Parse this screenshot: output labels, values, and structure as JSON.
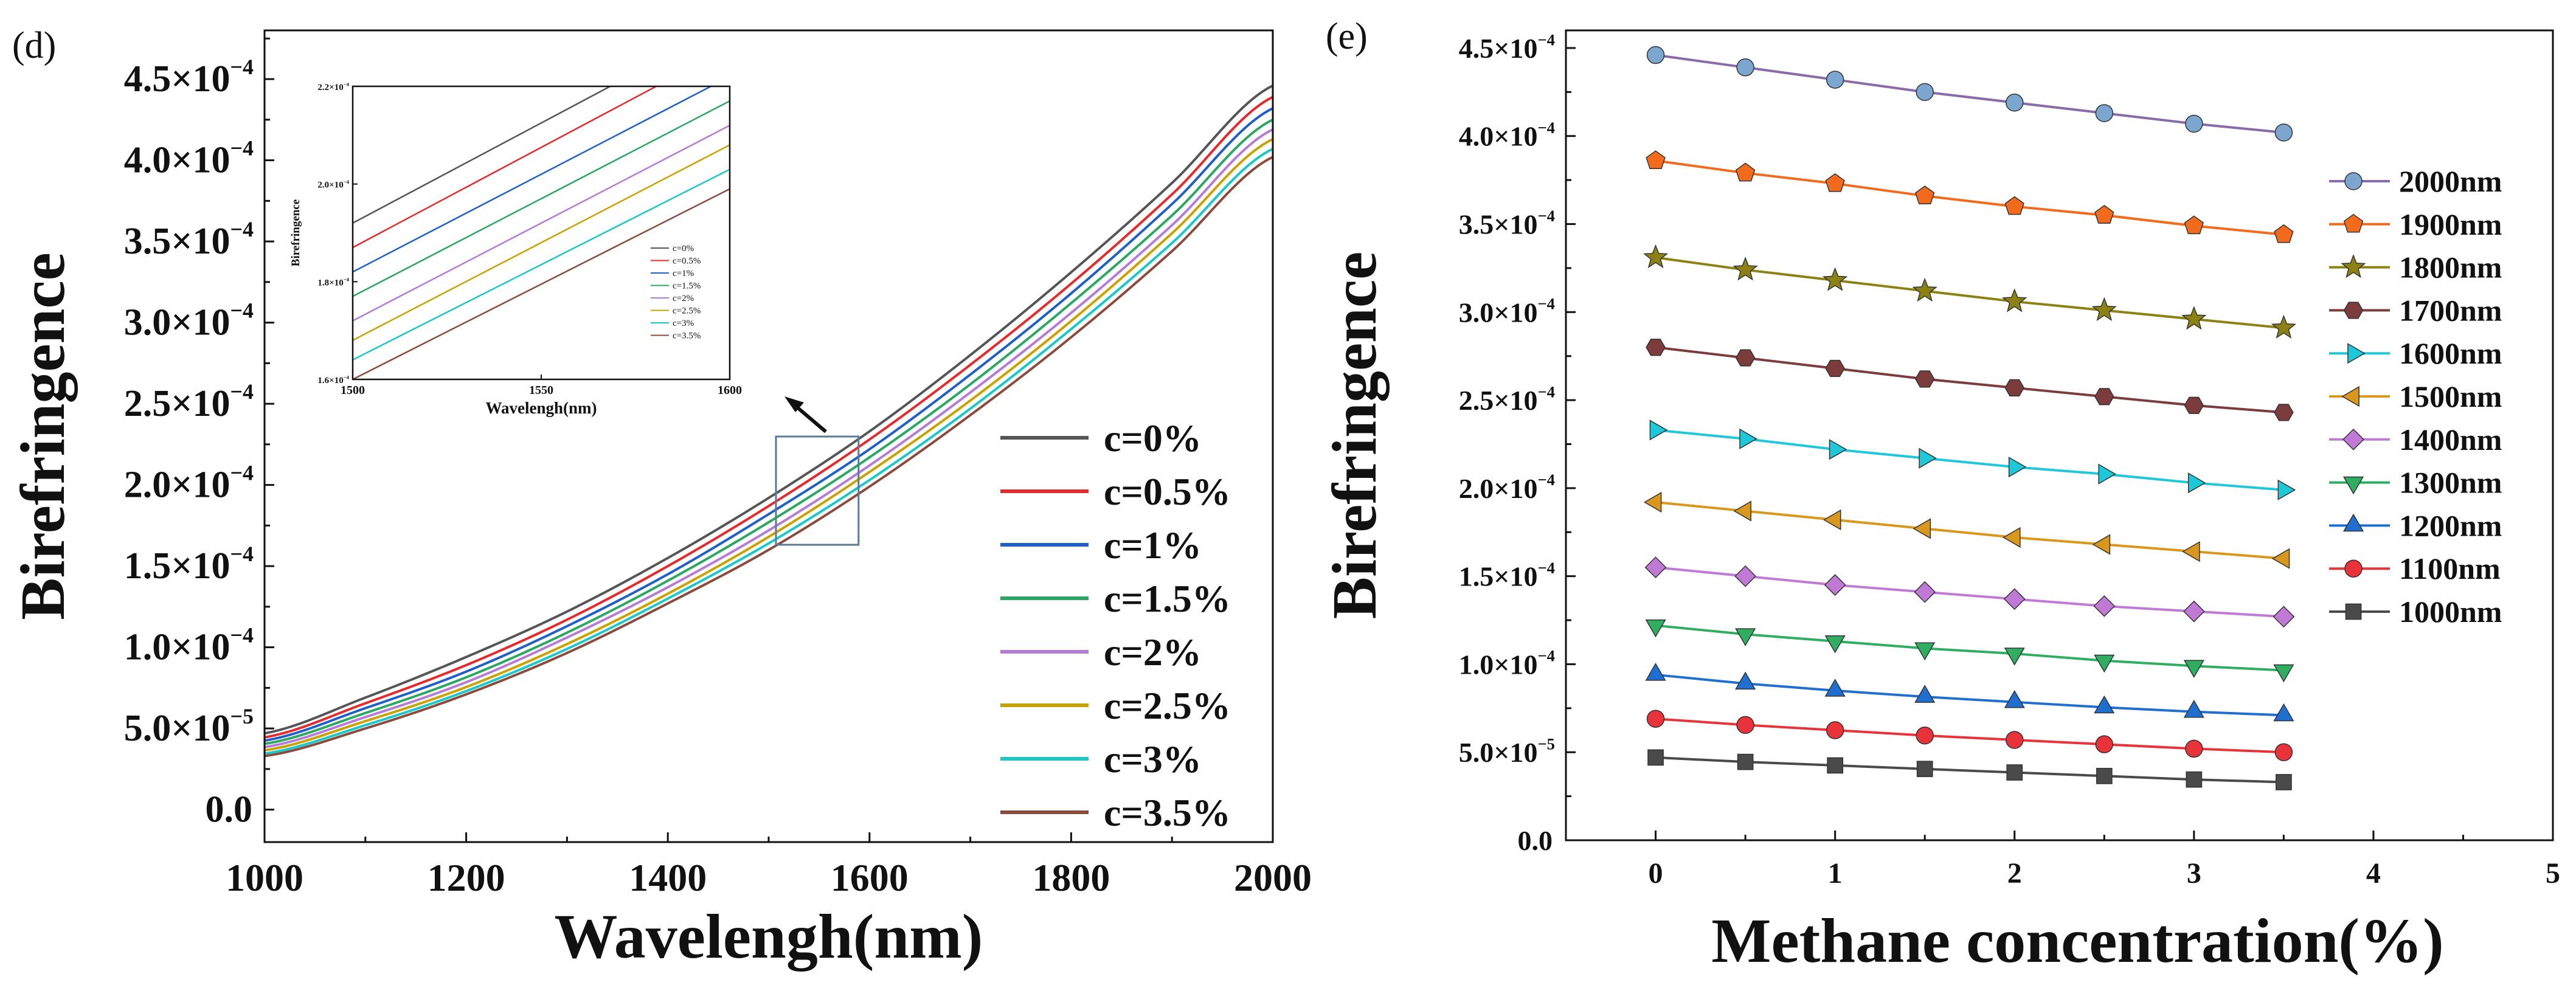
{
  "chart_data": [
    {
      "panel_label": "(d)",
      "type": "line",
      "title": "",
      "xlabel": "Wavelengh(nm)",
      "ylabel": "Birefringence",
      "xlim": [
        1000,
        2000
      ],
      "ylim": [
        -2e-05,
        0.00048
      ],
      "xticks": [
        1000,
        1200,
        1400,
        1600,
        1800,
        2000
      ],
      "xtick_labels": [
        "1000",
        "1200",
        "1400",
        "1600",
        "1800",
        "2000"
      ],
      "yticks": [
        0,
        5e-05,
        0.0001,
        0.00015,
        0.0002,
        0.00025,
        0.0003,
        0.00035,
        0.0004,
        0.00045
      ],
      "ytick_labels": [
        {
          "text": "0.0",
          "mant": "",
          "exp": ""
        },
        {
          "text": "",
          "mant": "5.0×10",
          "exp": "−5"
        },
        {
          "text": "",
          "mant": "1.0×10",
          "exp": "−4"
        },
        {
          "text": "",
          "mant": "1.5×10",
          "exp": "−4"
        },
        {
          "text": "",
          "mant": "2.0×10",
          "exp": "−4"
        },
        {
          "text": "",
          "mant": "2.5×10",
          "exp": "−4"
        },
        {
          "text": "",
          "mant": "3.0×10",
          "exp": "−4"
        },
        {
          "text": "",
          "mant": "3.5×10",
          "exp": "−4"
        },
        {
          "text": "",
          "mant": "4.0×10",
          "exp": "−4"
        },
        {
          "text": "",
          "mant": "4.5×10",
          "exp": "−4"
        }
      ],
      "legend_position": "lower-right",
      "grid": false,
      "x": [
        1000,
        1100,
        1200,
        1300,
        1400,
        1500,
        1600,
        1700,
        1800,
        1900,
        2000
      ],
      "series": [
        {
          "name": "c=0%",
          "color": "#555555",
          "values": [
            4.7e-05,
            6.9e-05,
            9.4e-05,
            0.000122,
            0.000155,
            0.000192,
            0.000233,
            0.00028,
            0.000331,
            0.000386,
            0.000446
          ]
        },
        {
          "name": "c=0.5%",
          "color": "#e8292c",
          "values": [
            4.45e-05,
            6.55e-05,
            8.9e-05,
            0.000117,
            0.00015,
            0.000187,
            0.000228,
            0.000274,
            0.000324,
            0.000379,
            0.000439
          ]
        },
        {
          "name": "c=1%",
          "color": "#1f5fc9",
          "values": [
            4.25e-05,
            6.25e-05,
            8.5e-05,
            0.000113,
            0.000145,
            0.000182,
            0.000222,
            0.000268,
            0.000318,
            0.000373,
            0.000432
          ]
        },
        {
          "name": "c=1.5%",
          "color": "#2aa760",
          "values": [
            4.05e-05,
            5.95e-05,
            8.15e-05,
            0.000109,
            0.000141,
            0.000177,
            0.000217,
            0.000262,
            0.000312,
            0.000366,
            0.000425
          ]
        },
        {
          "name": "c=2%",
          "color": "#b57bd6",
          "values": [
            3.85e-05,
            5.7e-05,
            7.85e-05,
            0.000106,
            0.000137,
            0.000172,
            0.000212,
            0.000257,
            0.000306,
            0.00036,
            0.000419
          ]
        },
        {
          "name": "c=2.5%",
          "color": "#c9a200",
          "values": [
            3.65e-05,
            5.45e-05,
            7.55e-05,
            0.000102,
            0.000133,
            0.000168,
            0.000208,
            0.000252,
            0.000301,
            0.000355,
            0.000413
          ]
        },
        {
          "name": "c=3%",
          "color": "#1cc7c7",
          "values": [
            3.45e-05,
            5.2e-05,
            7.3e-05,
            9.9e-05,
            0.00013,
            0.000164,
            0.000203,
            0.000247,
            0.000296,
            0.000349,
            0.000407
          ]
        },
        {
          "name": "c=3.5%",
          "color": "#8b4a3c",
          "values": [
            3.3e-05,
            5e-05,
            7.1e-05,
            9.65e-05,
            0.000127,
            0.00016,
            0.000199,
            0.000243,
            0.000291,
            0.000344,
            0.000402
          ]
        }
      ],
      "inset": {
        "xlabel": "Wavelengh(nm)",
        "ylabel": "Birefringence",
        "xlim": [
          1500,
          1600
        ],
        "ylim": [
          0.00016,
          0.00022
        ],
        "xticks": [
          1500,
          1550,
          1600
        ],
        "xtick_labels": [
          "1500",
          "1550",
          "1600"
        ],
        "yticks": [
          0.00016,
          0.00018,
          0.0002,
          0.00022
        ],
        "ytick_labels": [
          {
            "mant": "1.6×10",
            "exp": "−4"
          },
          {
            "mant": "1.8×10",
            "exp": "−4"
          },
          {
            "mant": "2.0×10",
            "exp": "−4"
          },
          {
            "mant": "2.2×10",
            "exp": "−4"
          }
        ],
        "legend_position": "lower-right"
      }
    },
    {
      "panel_label": "(e)",
      "type": "line",
      "title": "",
      "xlabel": "Methane concentration(%)",
      "ylabel": "Birefringence",
      "xlim": [
        -0.5,
        5
      ],
      "ylim": [
        0,
        0.00046
      ],
      "xticks": [
        0,
        1,
        2,
        3,
        4,
        5
      ],
      "xtick_labels": [
        "0",
        "1",
        "2",
        "3",
        "4",
        "5"
      ],
      "yticks": [
        0,
        5e-05,
        0.0001,
        0.00015,
        0.0002,
        0.00025,
        0.0003,
        0.00035,
        0.0004,
        0.00045
      ],
      "ytick_labels": [
        {
          "text": "0.0",
          "mant": "",
          "exp": ""
        },
        {
          "text": "",
          "mant": "5.0×10",
          "exp": "−5"
        },
        {
          "text": "",
          "mant": "1.0×10",
          "exp": "−4"
        },
        {
          "text": "",
          "mant": "1.5×10",
          "exp": "−4"
        },
        {
          "text": "",
          "mant": "2.0×10",
          "exp": "−4"
        },
        {
          "text": "",
          "mant": "2.5×10",
          "exp": "−4"
        },
        {
          "text": "",
          "mant": "3.0×10",
          "exp": "−4"
        },
        {
          "text": "",
          "mant": "3.5×10",
          "exp": "−4"
        },
        {
          "text": "",
          "mant": "4.0×10",
          "exp": "−4"
        },
        {
          "text": "",
          "mant": "4.5×10",
          "exp": "−4"
        }
      ],
      "legend_position": "right",
      "grid": false,
      "x": [
        0,
        0.5,
        1,
        1.5,
        2,
        2.5,
        3,
        3.5
      ],
      "series": [
        {
          "name": "2000nm",
          "color": "#7aa6cf",
          "line": "#8a6aa8",
          "marker": "circle",
          "values": [
            0.000446,
            0.000439,
            0.000432,
            0.000425,
            0.000419,
            0.000413,
            0.000407,
            0.000402
          ]
        },
        {
          "name": "1900nm",
          "color": "#f26a1c",
          "line": "#f26a1c",
          "marker": "pentagon",
          "values": [
            0.000386,
            0.000379,
            0.000373,
            0.000366,
            0.00036,
            0.000355,
            0.000349,
            0.000344
          ]
        },
        {
          "name": "1800nm",
          "color": "#8c8214",
          "line": "#8c8214",
          "marker": "star",
          "values": [
            0.000331,
            0.000324,
            0.000318,
            0.000312,
            0.000306,
            0.000301,
            0.000296,
            0.000291
          ]
        },
        {
          "name": "1700nm",
          "color": "#7d3c3c",
          "line": "#7d3c3c",
          "marker": "hexagon",
          "values": [
            0.00028,
            0.000274,
            0.000268,
            0.000262,
            0.000257,
            0.000252,
            0.000247,
            0.000243
          ]
        },
        {
          "name": "1600nm",
          "color": "#1ec8d8",
          "line": "#1ec8d8",
          "marker": "triangle-right",
          "values": [
            0.000233,
            0.000228,
            0.000222,
            0.000217,
            0.000212,
            0.000208,
            0.000203,
            0.000199
          ]
        },
        {
          "name": "1500nm",
          "color": "#d9971b",
          "line": "#d9971b",
          "marker": "triangle-left",
          "values": [
            0.000192,
            0.000187,
            0.000182,
            0.000177,
            0.000172,
            0.000168,
            0.000164,
            0.00016
          ]
        },
        {
          "name": "1400nm",
          "color": "#c07ad6",
          "line": "#c07ad6",
          "marker": "diamond",
          "values": [
            0.000155,
            0.00015,
            0.000145,
            0.000141,
            0.000137,
            0.000133,
            0.00013,
            0.000127
          ]
        },
        {
          "name": "1300nm",
          "color": "#2fae62",
          "line": "#2fae62",
          "marker": "triangle-down",
          "values": [
            0.000122,
            0.000117,
            0.000113,
            0.000109,
            0.000106,
            0.000102,
            9.9e-05,
            9.65e-05
          ]
        },
        {
          "name": "1200nm",
          "color": "#1f6fd1",
          "line": "#1f6fd1",
          "marker": "triangle-up",
          "values": [
            9.4e-05,
            8.9e-05,
            8.5e-05,
            8.15e-05,
            7.85e-05,
            7.55e-05,
            7.3e-05,
            7.1e-05
          ]
        },
        {
          "name": "1100nm",
          "color": "#e8333a",
          "line": "#e8333a",
          "marker": "circle",
          "values": [
            6.9e-05,
            6.55e-05,
            6.25e-05,
            5.95e-05,
            5.7e-05,
            5.45e-05,
            5.2e-05,
            5e-05
          ]
        },
        {
          "name": "1000nm",
          "color": "#4a4a4a",
          "line": "#4a4a4a",
          "marker": "square",
          "values": [
            4.7e-05,
            4.45e-05,
            4.25e-05,
            4.05e-05,
            3.85e-05,
            3.65e-05,
            3.45e-05,
            3.3e-05
          ]
        }
      ]
    }
  ]
}
